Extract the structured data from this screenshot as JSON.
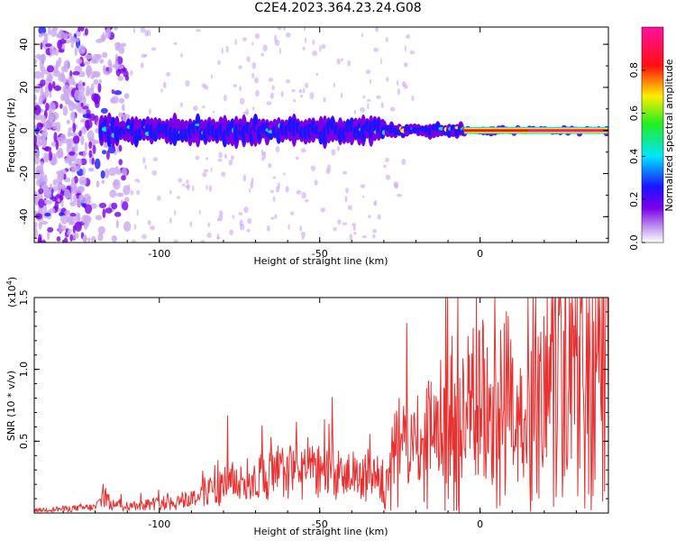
{
  "figure": {
    "title": "C2E4.2023.364.23.24.G08"
  },
  "chart_data": [
    {
      "type": "heatmap",
      "xlabel": "Height of straight line (km)",
      "ylabel": "Frequency (Hz)",
      "xlim": [
        -139,
        40
      ],
      "ylim": [
        -52,
        48
      ],
      "x_ticks": [
        -100,
        -50,
        0
      ],
      "y_ticks": [
        -40,
        -20,
        0,
        20,
        40
      ],
      "colorbar": {
        "label": "Normalized spectral amplitude",
        "range": [
          0.0,
          1.0
        ],
        "ticks": [
          0.0,
          0.2,
          0.4,
          0.6,
          0.8
        ],
        "colormap": "rainbow (purple → blue → cyan → green → yellow → red → magenta)"
      },
      "band": {
        "center_frequency_hz": 0,
        "description": "Signal band centered near 0 Hz; noisy scattered low-amplitude speckle for heights below about -115 km, band from about -118 km onward, amplitude increasing toward 40 km",
        "segments": [
          {
            "x_start": -118,
            "x_end": -30,
            "half_width_hz": 6,
            "mean_amplitude": 0.3
          },
          {
            "x_start": -30,
            "x_end": -5,
            "half_width_hz": 3,
            "mean_amplitude": 0.5
          },
          {
            "x_start": -5,
            "x_end": 40,
            "half_width_hz": 1.5,
            "mean_amplitude": 0.95
          }
        ]
      },
      "colors": {
        "purple": "#7a00e6",
        "light_purple": "#c9a8ef",
        "blue": "#1a14ff",
        "cyan": "#00e5ff",
        "green": "#22ee22",
        "yellow": "#ffee00",
        "red": "#ff1010",
        "magenta": "#ff10a0"
      }
    },
    {
      "type": "line",
      "xlabel": "Height of straight line (km)",
      "ylabel": "SNR (10 * v/v)",
      "y_multiplier": "(x10",
      "y_multiplier_exp": "4",
      "y_multiplier_close": ")",
      "xlim": [
        -139,
        40
      ],
      "ylim": [
        0,
        15000
      ],
      "x_ticks": [
        -100,
        -50,
        0
      ],
      "y_ticks": [
        5000,
        10000,
        15000
      ],
      "y_tick_labels": [
        "0.5",
        "1.0",
        "1.5"
      ],
      "line_color": "#e83030",
      "series": [
        {
          "x": [
            -139,
            -130,
            -120,
            -117,
            -115,
            -110,
            -100,
            -95,
            -90,
            -85,
            -80,
            -75,
            -70,
            -65,
            -60,
            -55,
            -50,
            -45,
            -40,
            -35,
            -30,
            -27,
            -25,
            -22,
            -20,
            -18,
            -15,
            -12,
            -10,
            -7,
            -5,
            -3,
            -1,
            0,
            2,
            4,
            6,
            8,
            10,
            12,
            14,
            16,
            18,
            20,
            22,
            25,
            28,
            31,
            34,
            36,
            37,
            38,
            40
          ],
          "y": [
            200,
            300,
            400,
            1200,
            600,
            500,
            700,
            800,
            1000,
            1500,
            2000,
            2200,
            2400,
            2600,
            3000,
            3000,
            3000,
            2500,
            2500,
            2600,
            2500,
            4500,
            5000,
            4000,
            5500,
            5000,
            6500,
            6500,
            7500,
            7000,
            8000,
            7500,
            7500,
            9000,
            8000,
            6500,
            7500,
            9000,
            7000,
            5500,
            7000,
            7500,
            9500,
            6000,
            10500,
            11000,
            10000,
            11000,
            12000,
            9000,
            13500,
            12000,
            11000
          ]
        }
      ]
    }
  ]
}
